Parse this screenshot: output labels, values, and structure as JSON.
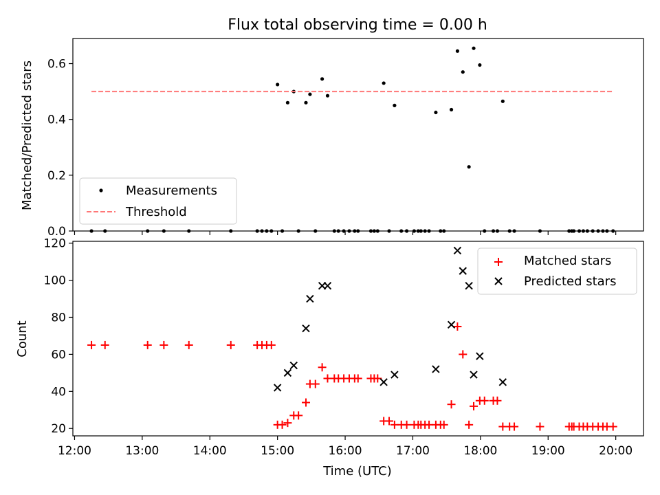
{
  "chart_data": [
    {
      "type": "scatter",
      "title": "Flux total observing time = 0.00 h",
      "xlabel": "",
      "ylabel": "Matched/Predicted stars",
      "xlim": [
        11.975,
        20.41
      ],
      "ylim": [
        0,
        0.69
      ],
      "x_ticks": [
        "12:00",
        "13:00",
        "14:00",
        "15:00",
        "16:00",
        "17:00",
        "18:00",
        "19:00",
        "20:00"
      ],
      "x_tick_values": [
        12,
        13,
        14,
        15,
        16,
        17,
        18,
        19,
        20
      ],
      "y_ticks": [
        "0.0",
        "0.2",
        "0.4",
        "0.6"
      ],
      "y_tick_values": [
        0,
        0.2,
        0.4,
        0.6
      ],
      "legend_position": "lower-left",
      "series": [
        {
          "name": "Measurements",
          "color": "#000000",
          "marker": "dot",
          "x": [
            12.25,
            12.45,
            13.08,
            13.32,
            13.69,
            14.31,
            14.7,
            14.77,
            14.84,
            14.91,
            15.0,
            15.07,
            15.15,
            15.24,
            15.31,
            15.42,
            15.48,
            15.56,
            15.66,
            15.74,
            15.84,
            15.9,
            15.98,
            16.06,
            16.14,
            16.19,
            16.38,
            16.43,
            16.48,
            16.57,
            16.65,
            16.73,
            16.83,
            16.91,
            17.02,
            17.08,
            17.12,
            17.18,
            17.24,
            17.34,
            17.41,
            17.46,
            17.57,
            17.66,
            17.74,
            17.83,
            17.9,
            17.99,
            18.06,
            18.19,
            18.25,
            18.33,
            18.43,
            18.5,
            18.88,
            19.31,
            19.35,
            19.38,
            19.46,
            19.52,
            19.58,
            19.66,
            19.74,
            19.81,
            19.87,
            19.96
          ],
          "y": [
            0,
            0,
            0,
            0,
            0,
            0,
            0,
            0,
            0,
            0,
            0.525,
            0,
            0.46,
            0.5,
            0,
            0.46,
            0.49,
            0,
            0.545,
            0.485,
            0,
            0,
            0,
            0,
            0,
            0,
            0,
            0,
            0,
            0.53,
            0,
            0.45,
            0,
            0,
            0,
            0,
            0,
            0,
            0,
            0.425,
            0,
            0,
            0.435,
            0.645,
            0.57,
            0.23,
            0.655,
            0.595,
            0,
            0,
            0,
            0.465,
            0,
            0,
            0,
            0,
            0,
            0,
            0,
            0,
            0,
            0,
            0,
            0,
            0,
            0
          ]
        },
        {
          "name": "Threshold",
          "color": "#ff7777",
          "style": "dashed",
          "x": [
            12.25,
            19.96
          ],
          "y": [
            0.5,
            0.5
          ]
        }
      ]
    },
    {
      "type": "scatter",
      "xlabel": "Time (UTC)",
      "ylabel": "Count",
      "xlim": [
        11.975,
        20.41
      ],
      "ylim": [
        16,
        121
      ],
      "x_ticks": [
        "12:00",
        "13:00",
        "14:00",
        "15:00",
        "16:00",
        "17:00",
        "18:00",
        "19:00",
        "20:00"
      ],
      "x_tick_values": [
        12,
        13,
        14,
        15,
        16,
        17,
        18,
        19,
        20
      ],
      "y_ticks": [
        "20",
        "40",
        "60",
        "80",
        "100",
        "120"
      ],
      "y_tick_values": [
        20,
        40,
        60,
        80,
        100,
        120
      ],
      "legend_position": "top-right",
      "series": [
        {
          "name": "Matched stars",
          "color": "#ff0000",
          "marker": "plus",
          "x": [
            12.25,
            12.45,
            13.08,
            13.32,
            13.69,
            14.31,
            14.7,
            14.77,
            14.84,
            14.91,
            15.0,
            15.07,
            15.15,
            15.24,
            15.31,
            15.42,
            15.48,
            15.56,
            15.66,
            15.74,
            15.84,
            15.9,
            15.98,
            16.06,
            16.14,
            16.19,
            16.38,
            16.43,
            16.48,
            16.57,
            16.65,
            16.73,
            16.83,
            16.91,
            17.02,
            17.08,
            17.12,
            17.18,
            17.24,
            17.34,
            17.41,
            17.46,
            17.57,
            17.66,
            17.74,
            17.83,
            17.9,
            17.99,
            18.06,
            18.19,
            18.25,
            18.33,
            18.43,
            18.5,
            18.88,
            19.31,
            19.35,
            19.38,
            19.46,
            19.52,
            19.58,
            19.66,
            19.74,
            19.81,
            19.87,
            19.96
          ],
          "y": [
            65,
            65,
            65,
            65,
            65,
            65,
            65,
            65,
            65,
            65,
            22,
            22,
            23,
            27,
            27,
            34,
            44,
            44,
            53,
            47,
            47,
            47,
            47,
            47,
            47,
            47,
            47,
            47,
            47,
            24,
            24,
            22,
            22,
            22,
            22,
            22,
            22,
            22,
            22,
            22,
            22,
            22,
            33,
            75,
            60,
            22,
            32,
            35,
            35,
            35,
            35,
            21,
            21,
            21,
            21,
            21,
            21,
            21,
            21,
            21,
            21,
            21,
            21,
            21,
            21,
            21
          ]
        },
        {
          "name": "Predicted stars",
          "color": "#000000",
          "marker": "x",
          "x": [
            15.0,
            15.15,
            15.24,
            15.42,
            15.48,
            15.66,
            15.74,
            16.57,
            16.73,
            17.34,
            17.57,
            17.66,
            17.74,
            17.83,
            17.9,
            17.99,
            18.33
          ],
          "y": [
            42,
            50,
            54,
            74,
            90,
            97,
            97,
            45,
            49,
            52,
            76,
            116,
            105,
            97,
            49,
            59,
            45
          ]
        }
      ]
    }
  ]
}
